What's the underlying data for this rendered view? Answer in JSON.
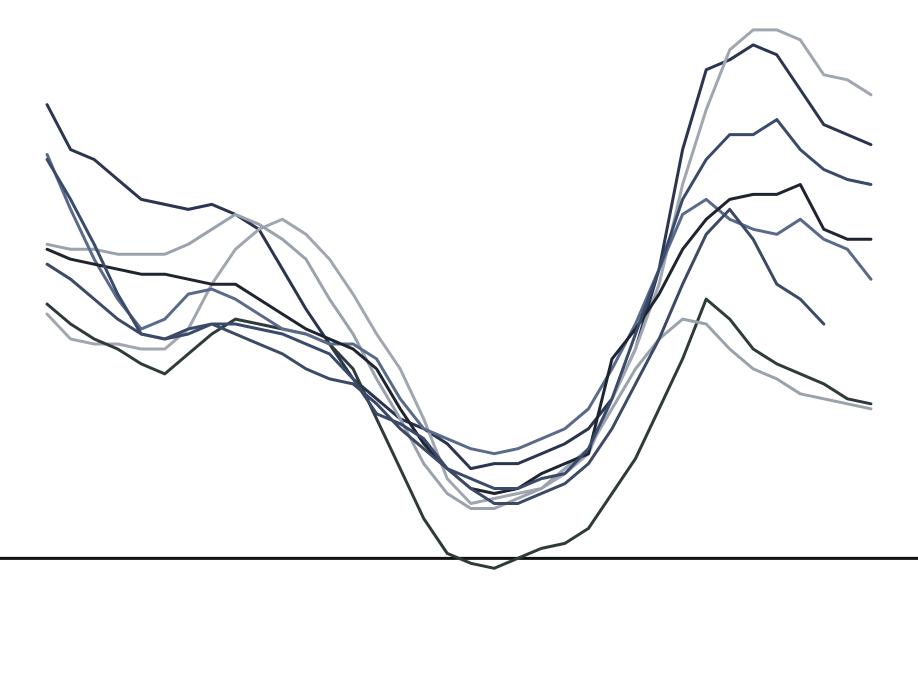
{
  "chart_data": {
    "type": "line",
    "x": [
      0,
      1,
      2,
      3,
      4,
      5,
      6,
      7,
      8,
      9,
      10,
      11,
      12,
      13,
      14,
      15,
      16,
      17,
      18,
      19,
      20,
      21,
      22,
      23,
      24,
      25,
      26,
      27,
      28,
      29,
      30,
      31,
      32,
      33,
      34,
      35
    ],
    "xlim": [
      -2,
      37
    ],
    "ylim": [
      -23,
      112
    ],
    "series": [
      {
        "color": "#2c3550",
        "values": [
          91,
          82,
          80,
          76,
          72,
          71,
          70,
          71,
          69,
          66,
          58,
          50,
          43,
          36,
          32,
          28,
          26,
          23,
          18,
          19,
          19,
          21,
          23,
          26,
          32,
          42,
          58,
          82,
          98,
          100,
          103,
          101,
          94,
          87,
          85,
          83
        ]
      },
      {
        "color": "#a0a7b0",
        "values": [
          49,
          44,
          43,
          43,
          42,
          42,
          46,
          55,
          62,
          66,
          68,
          65,
          60,
          53,
          45,
          38,
          28,
          16,
          11,
          12,
          13,
          14,
          17,
          21,
          32,
          42,
          55,
          75,
          90,
          102,
          106,
          106,
          104,
          97,
          96,
          93
        ]
      },
      {
        "color": "#2e3b3a",
        "values": [
          51,
          47,
          44,
          42,
          39,
          37,
          41,
          45,
          48,
          47,
          46,
          45,
          43,
          38,
          28,
          18,
          8,
          1,
          -1,
          -2,
          0,
          2,
          3,
          6,
          13,
          20,
          30,
          40,
          52,
          48,
          42,
          39,
          37,
          35,
          32,
          31
        ]
      },
      {
        "color": "#9aa3ad",
        "values": [
          63,
          62,
          62,
          61,
          61,
          61,
          63,
          66,
          69,
          67,
          64,
          60,
          52,
          45,
          36,
          28,
          19,
          13,
          10,
          10,
          12,
          14,
          18,
          22,
          30,
          38,
          44,
          48,
          47,
          42,
          38,
          36,
          33,
          32,
          31,
          30
        ]
      },
      {
        "color": "#5a6a8a",
        "values": [
          81,
          70,
          60,
          52,
          46,
          48,
          53,
          54,
          52,
          49,
          46,
          45,
          43,
          43,
          40,
          32,
          26,
          24,
          22,
          21,
          22,
          24,
          26,
          30,
          38,
          47,
          58,
          69,
          72,
          68,
          66,
          65,
          68,
          64,
          62,
          56
        ]
      },
      {
        "color": "#1f2430",
        "values": [
          62,
          60,
          59,
          58,
          57,
          57,
          56,
          55,
          55,
          52,
          49,
          46,
          44,
          42,
          38,
          30,
          23,
          18,
          14,
          13,
          14,
          17,
          19,
          21,
          40,
          46,
          53,
          62,
          68,
          72,
          73,
          73,
          75,
          66,
          64,
          64
        ]
      },
      {
        "color": "#3a4a6a",
        "values": [
          80,
          72,
          63,
          53,
          45,
          44,
          46,
          47,
          47,
          46,
          45,
          43,
          41,
          36,
          29,
          27,
          24,
          18,
          16,
          14,
          14,
          16,
          17,
          22,
          32,
          45,
          58,
          72,
          80,
          85,
          85,
          88,
          82,
          78,
          76,
          75
        ]
      },
      {
        "color": "#3c4a66",
        "values": [
          59,
          56,
          52,
          48,
          45,
          44,
          45,
          47,
          45,
          43,
          41,
          38,
          36,
          35,
          31,
          26,
          22,
          18,
          14,
          11,
          11,
          13,
          15,
          19,
          26,
          35,
          44,
          55,
          65,
          70,
          64,
          55,
          52,
          47,
          null,
          null
        ]
      }
    ]
  }
}
